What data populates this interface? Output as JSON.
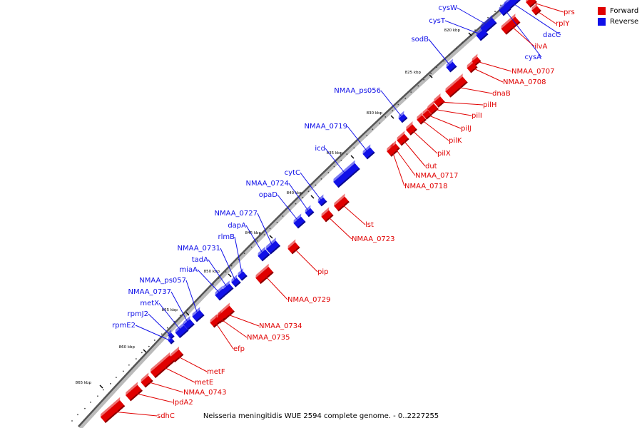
{
  "caption": "Neisseria meningitidis WUE 2594 complete genome. - 0..2227255",
  "legend": {
    "forward_label": "Forward",
    "reverse_label": "Reverse",
    "forward_color": "#e00000",
    "reverse_color": "#1010e8"
  },
  "chart_data": {
    "type": "genome-map",
    "strands": [
      "Forward",
      "Reverse"
    ],
    "ticks": [
      "820 kbp",
      "825 kbp",
      "830 kbp",
      "835 kbp",
      "840 kbp",
      "845 kbp",
      "850 kbp",
      "855 kbp",
      "860 kbp",
      "865 kbp"
    ],
    "forward_genes": [
      "prs",
      "rplY",
      "ilvA",
      "NMAA_0707",
      "NMAA_0708",
      "dnaB",
      "pilH",
      "pilI",
      "pilJ",
      "pilK",
      "pilX",
      "dut",
      "NMAA_0717",
      "NMAA_0718",
      "lst",
      "NMAA_0723",
      "pip",
      "NMAA_0729",
      "NMAA_0734",
      "NMAA_0735",
      "efp",
      "metF",
      "metE",
      "NMAA_0743",
      "lpdA2",
      "sdhC"
    ],
    "reverse_genes": [
      "cysW",
      "cysT",
      "dacC",
      "cysA",
      "sodB",
      "NMAA_ps056",
      "NMAA_0719",
      "icd",
      "cytC",
      "NMAA_0724",
      "opaD",
      "NMAA_0727",
      "dapA",
      "rlmB",
      "NMAA_0731",
      "tadA",
      "miaA",
      "NMAA_ps057",
      "NMAA_0737",
      "metX",
      "rpmJ2",
      "rpmE2"
    ]
  }
}
